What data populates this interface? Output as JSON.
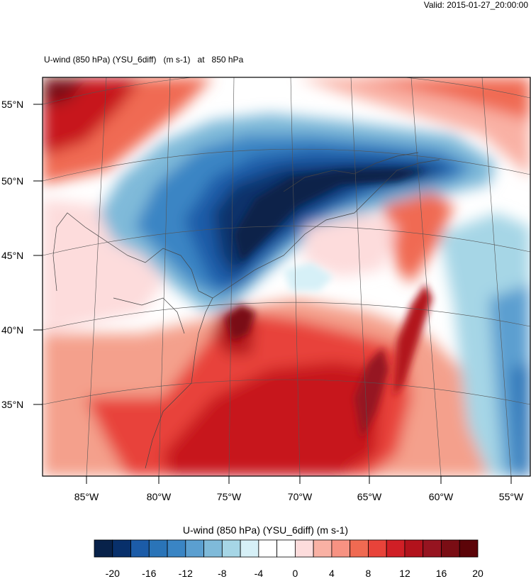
{
  "header": {
    "valid": "Valid: 2015-01-27_20:00:00"
  },
  "map": {
    "title_parts": [
      "U-wind (850 hPa) (YSU_6diff)",
      "(m s-1)",
      "at",
      "850 hPa"
    ],
    "lat_labels": [
      "55°N",
      "50°N",
      "45°N",
      "40°N",
      "35°N"
    ],
    "lon_labels": [
      "85°W",
      "80°W",
      "75°W",
      "70°W",
      "65°W",
      "60°W",
      "55°W"
    ],
    "colormap": {
      "blue_strong": "#08306b",
      "blue": "#3a85c4",
      "blue_light": "#a6d6e6",
      "white": "#ffffff",
      "red_light": "#fdd7d4",
      "red": "#e8433a",
      "red_strong": "#8b0c12"
    }
  },
  "colorbar": {
    "title": "U-wind (850 hPa) (YSU_6diff)  (m s-1)",
    "tick_labels": [
      "-20",
      "-16",
      "-12",
      "-8",
      "-4",
      "0",
      "4",
      "8",
      "12",
      "16",
      "20"
    ],
    "colors": [
      "#08224a",
      "#08306b",
      "#1c5ca8",
      "#2a74b8",
      "#3a85c4",
      "#5b9fd0",
      "#7fbad9",
      "#a6d6e6",
      "#d6f0f7",
      "#ffffff",
      "#ffffff",
      "#fddcdc",
      "#f9b1a4",
      "#f79282",
      "#f06a52",
      "#e8433a",
      "#d01f26",
      "#b2121c",
      "#961420",
      "#7a0d14",
      "#5c0408"
    ]
  }
}
